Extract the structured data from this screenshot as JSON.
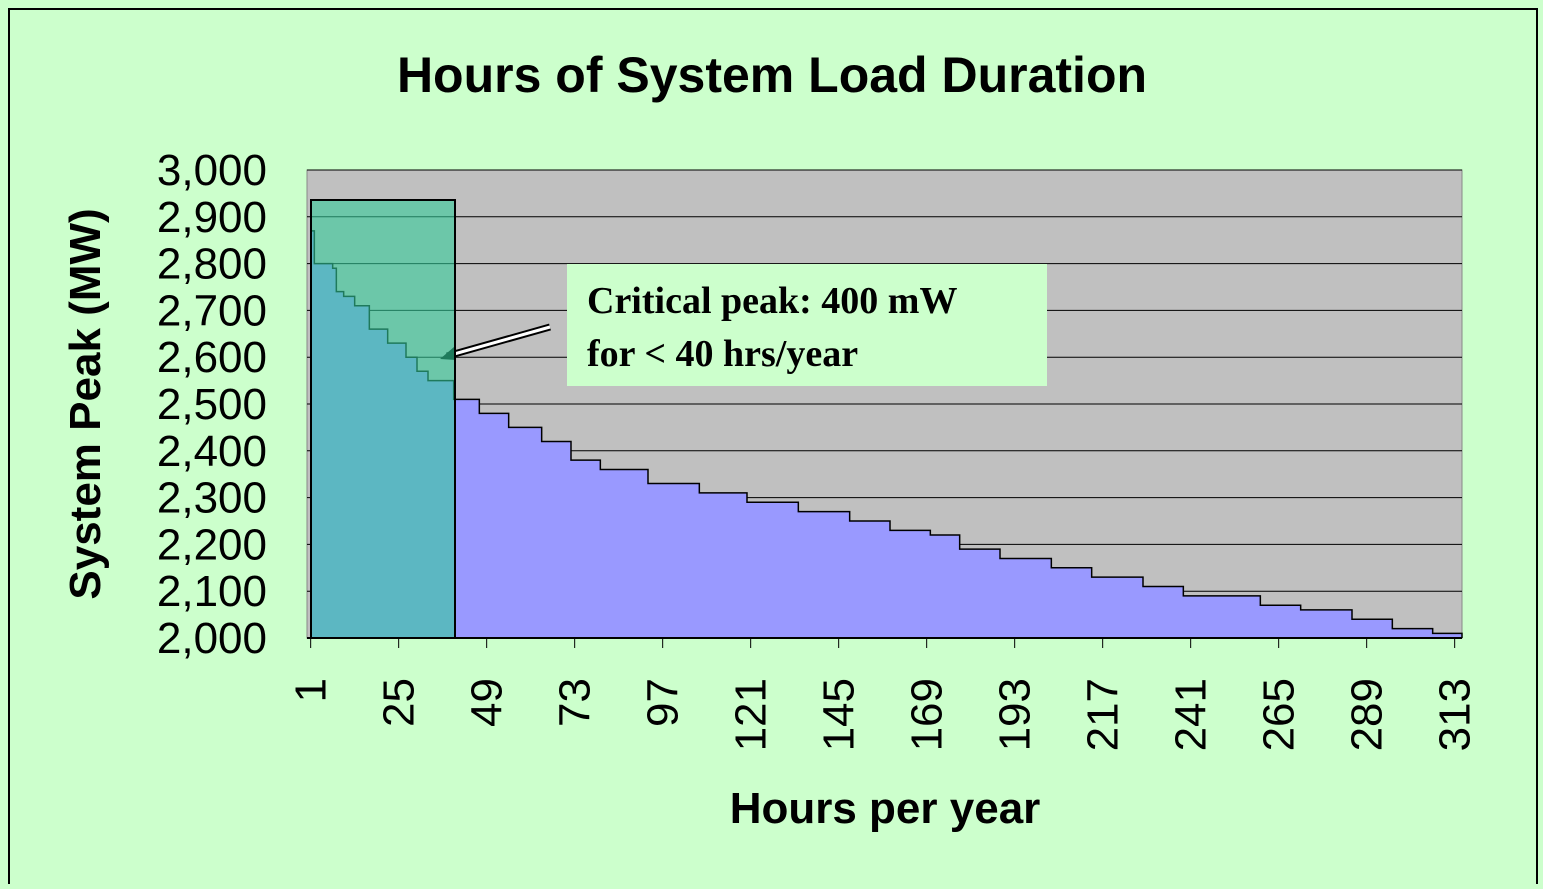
{
  "chart_data": {
    "type": "area",
    "title": "Hours of System Load Duration",
    "x_label": "Hours per year",
    "y_label": "System Peak (MW)",
    "annotation": [
      "Critical peak: 400 mW",
      "for < 40 hrs/year"
    ],
    "x": [
      1,
      2,
      7,
      8,
      10,
      13,
      17,
      22,
      27,
      30,
      33,
      40,
      47,
      55,
      64,
      72,
      80,
      88,
      93,
      107,
      120,
      134,
      148,
      159,
      170,
      178,
      189,
      203,
      214,
      228,
      239,
      250,
      260,
      271,
      285,
      296,
      307,
      315
    ],
    "series": [
      {
        "name": "System Peak",
        "color": "#9999ff",
        "values": [
          2870,
          2800,
          2790,
          2740,
          2730,
          2710,
          2660,
          2630,
          2600,
          2570,
          2550,
          2510,
          2480,
          2450,
          2420,
          2380,
          2360,
          2360,
          2330,
          2310,
          2290,
          2270,
          2250,
          2230,
          2220,
          2190,
          2170,
          2150,
          2130,
          2110,
          2090,
          2090,
          2070,
          2060,
          2040,
          2020,
          2010,
          2000
        ]
      }
    ],
    "xlim": [
      0,
      315
    ],
    "xticks": [
      1,
      25,
      49,
      73,
      97,
      121,
      145,
      169,
      193,
      217,
      241,
      265,
      289,
      313
    ],
    "ylim": [
      2000,
      3000
    ],
    "yticks": [
      {
        "value": 2000,
        "label": "2,000"
      },
      {
        "value": 2100,
        "label": "2,100"
      },
      {
        "value": 2200,
        "label": "2,200"
      },
      {
        "value": 2300,
        "label": "2,300"
      },
      {
        "value": 2400,
        "label": "2,400"
      },
      {
        "value": 2500,
        "label": "2,500"
      },
      {
        "value": 2600,
        "label": "2,600"
      },
      {
        "value": 2700,
        "label": "2,700"
      },
      {
        "value": 2800,
        "label": "2,800"
      },
      {
        "value": 2900,
        "label": "2,900"
      },
      {
        "value": {
          "value": 3000,
          "label": "3,000"
        },
        "label": "3,000"
      }
    ],
    "grid": true
  }
}
